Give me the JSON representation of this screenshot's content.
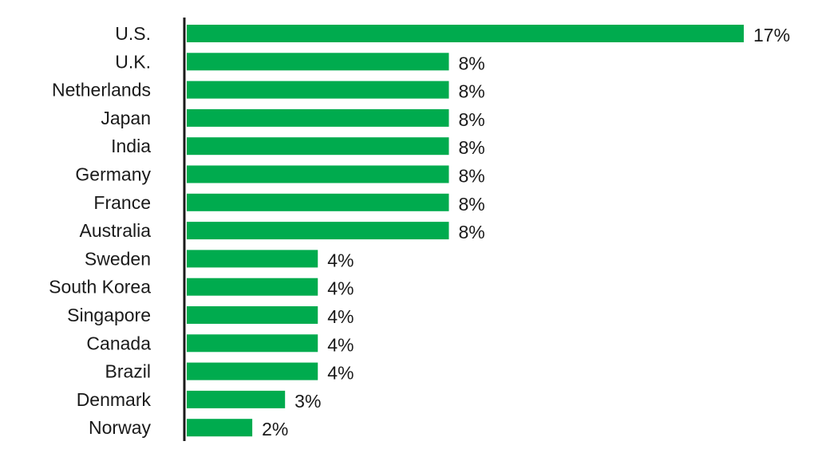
{
  "chart_data": {
    "type": "bar",
    "orientation": "horizontal",
    "categories": [
      "U.S.",
      "U.K.",
      "Netherlands",
      "Japan",
      "India",
      "Germany",
      "France",
      "Australia",
      "Sweden",
      "South Korea",
      "Singapore",
      "Canada",
      "Brazil",
      "Denmark",
      "Norway"
    ],
    "values": [
      17,
      8,
      8,
      8,
      8,
      8,
      8,
      8,
      4,
      4,
      4,
      4,
      4,
      3,
      2
    ],
    "value_labels": [
      "17%",
      "8%",
      "8%",
      "8%",
      "8%",
      "8%",
      "8%",
      "8%",
      "4%",
      "4%",
      "4%",
      "4%",
      "4%",
      "3%",
      "2%"
    ],
    "unit": "%",
    "xlim": [
      0,
      17
    ],
    "bar_color": "#00ab4e",
    "axis_color": "#1a1a1a",
    "grid": false
  }
}
